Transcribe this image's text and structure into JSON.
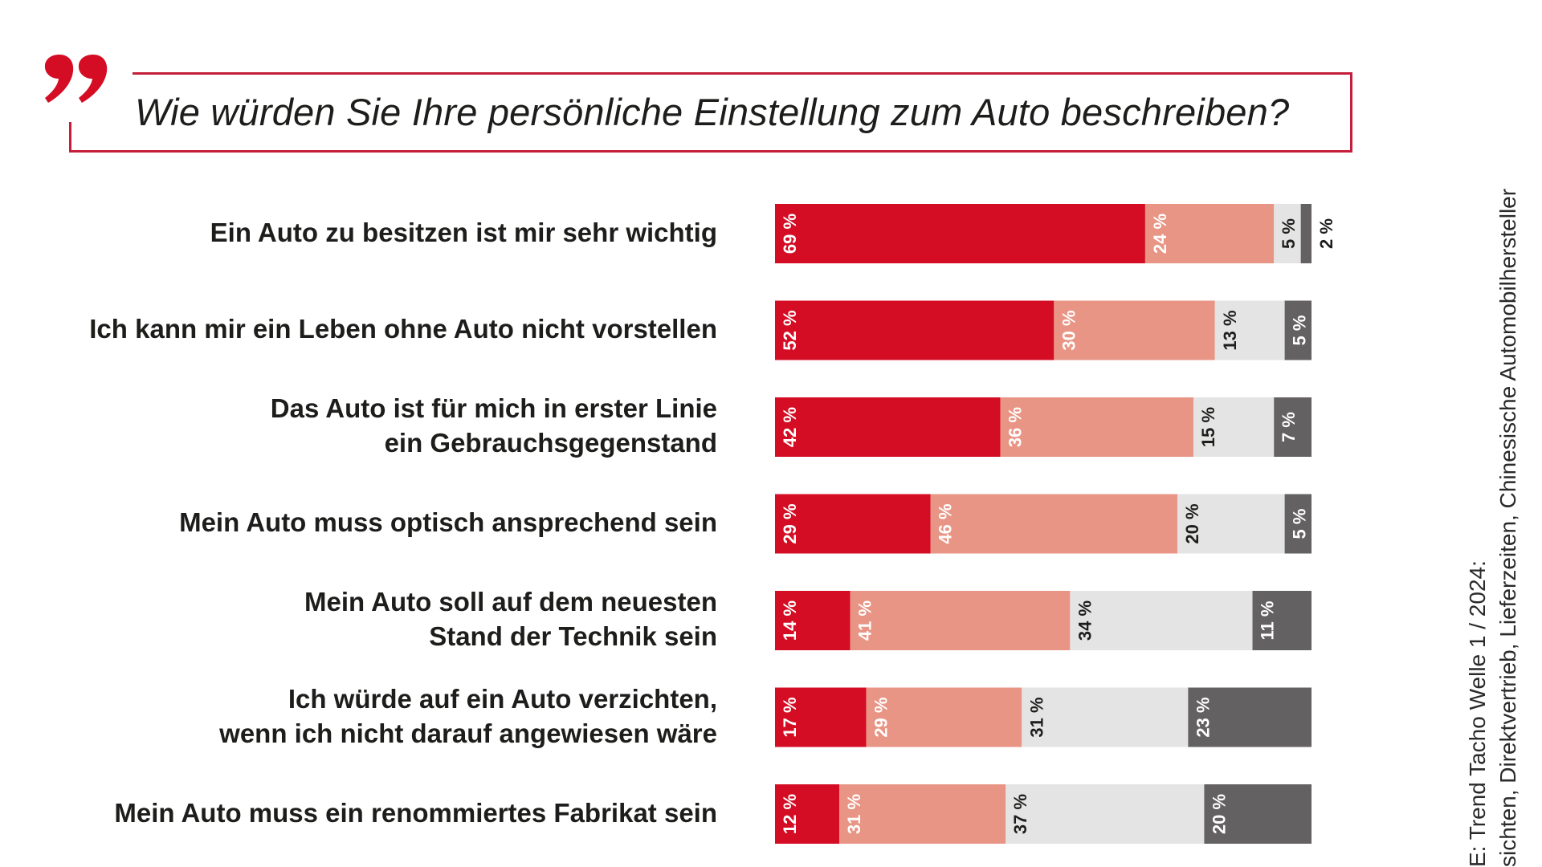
{
  "header": {
    "quote_icon": "closing-double-quote-icon",
    "question": "Wie würden Sie Ihre persönliche Einstellung zum Auto beschreiben?"
  },
  "colors": {
    "accent_red": "#d40d25",
    "light_red": "#e89585",
    "light_gray": "#e4e4e4",
    "dark_gray": "#636162",
    "frame": "#c41e3a"
  },
  "source": {
    "line1": "E: Trend Tacho Welle 1 / 2024:",
    "line2": "sichten, Direktvertrieb, Lieferzeiten, Chinesische Automobilhersteller"
  },
  "chart_data": {
    "type": "bar",
    "orientation": "horizontal-stacked-100",
    "title": "Wie würden Sie Ihre persönliche Einstellung zum Auto beschreiben?",
    "xlabel": "",
    "ylabel": "",
    "xlim": [
      0,
      100
    ],
    "unit": "%",
    "grid": false,
    "legend": "none",
    "categories": [
      [
        "Ein Auto zu besitzen ist mir sehr wichtig"
      ],
      [
        "Ich kann mir ein Leben ohne Auto nicht vorstellen"
      ],
      [
        "Das Auto ist für mich in erster Linie",
        "ein Gebrauchsgegenstand"
      ],
      [
        "Mein Auto muss optisch ansprechend sein"
      ],
      [
        "Mein Auto soll auf dem neuesten",
        "Stand der Technik sein"
      ],
      [
        "Ich würde auf ein Auto verzichten,",
        "wenn ich nicht darauf angewiesen wäre"
      ],
      [
        "Mein Auto muss ein renommiertes Fabrikat sein"
      ]
    ],
    "series": [
      {
        "name": "segment-1",
        "color": "#d40d25",
        "label_color": "#ffffff",
        "values": [
          69,
          52,
          42,
          29,
          14,
          17,
          12
        ]
      },
      {
        "name": "segment-2",
        "color": "#e89585",
        "label_color": "#ffffff",
        "values": [
          24,
          30,
          36,
          46,
          41,
          29,
          31
        ]
      },
      {
        "name": "segment-3",
        "color": "#e4e4e4",
        "label_color": "#1d1d1b",
        "values": [
          5,
          13,
          15,
          20,
          34,
          31,
          37
        ]
      },
      {
        "name": "segment-4",
        "color": "#636162",
        "label_color": "#ffffff",
        "values": [
          2,
          5,
          7,
          5,
          11,
          23,
          20
        ]
      }
    ],
    "data_labels": [
      [
        "69 %",
        "24 %",
        "5 %",
        "2 %"
      ],
      [
        "52 %",
        "30 %",
        "13 %",
        "5 %"
      ],
      [
        "42 %",
        "36 %",
        "15 %",
        "7 %"
      ],
      [
        "29 %",
        "46 %",
        "20 %",
        "5 %"
      ],
      [
        "14 %",
        "41 %",
        "34 %",
        "11 %"
      ],
      [
        "17 %",
        "29 %",
        "31 %",
        "23 %"
      ],
      [
        "12 %",
        "31 %",
        "37 %",
        "20 %"
      ]
    ]
  }
}
